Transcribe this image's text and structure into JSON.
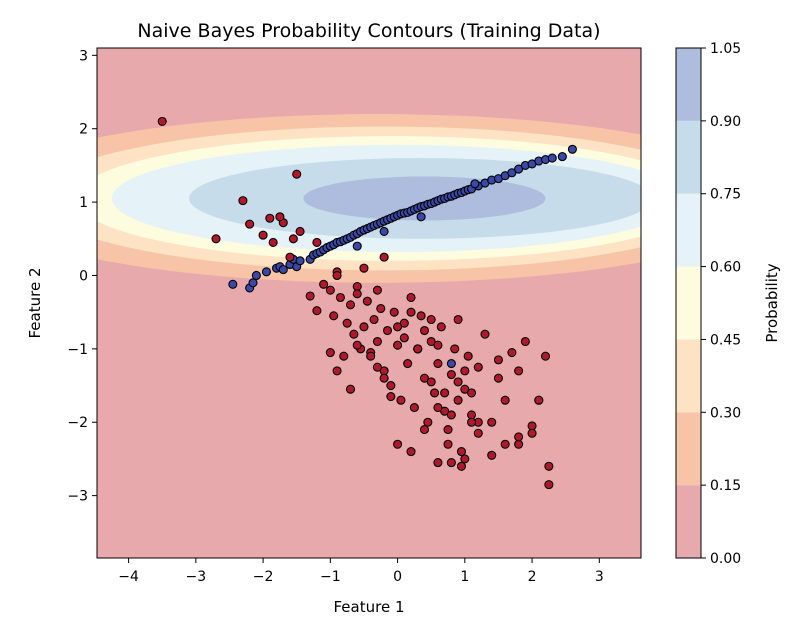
{
  "chart_data": {
    "type": "scatter",
    "title": "Naive Bayes Probability Contours (Training Data)",
    "xlabel": "Feature 1",
    "ylabel": "Feature 2",
    "xlim": [
      -4.47,
      3.62
    ],
    "ylim": [
      -3.85,
      3.1
    ],
    "xticks": [
      -4,
      -3,
      -2,
      -1,
      0,
      1,
      2,
      3
    ],
    "yticks": [
      -3,
      -2,
      -1,
      0,
      1,
      2,
      3
    ],
    "grid": false,
    "colorbar": {
      "label": "Probability",
      "ticks": [
        "0.00",
        "0.15",
        "0.30",
        "0.45",
        "0.60",
        "0.75",
        "0.90",
        "1.05"
      ],
      "levels": [
        0,
        0.15,
        0.3,
        0.45,
        0.6,
        0.75,
        0.9,
        1.05
      ],
      "colors": [
        "#e8a9ad",
        "#f7c4a8",
        "#fde2c4",
        "#fefcde",
        "#e5f2f7",
        "#c6dcea",
        "#aebcdd"
      ]
    },
    "contours": [
      {
        "level": 0.15,
        "cx": -0.3,
        "cy": 1.05,
        "rx": 6.0,
        "ry": 1.15
      },
      {
        "level": 0.3,
        "cx": -0.2,
        "cy": 1.05,
        "rx": 5.2,
        "ry": 0.98
      },
      {
        "level": 0.45,
        "cx": -0.1,
        "cy": 1.05,
        "rx": 4.7,
        "ry": 0.85
      },
      {
        "level": 0.6,
        "cx": 0.0,
        "cy": 1.05,
        "rx": 4.25,
        "ry": 0.73
      },
      {
        "level": 0.75,
        "cx": 0.35,
        "cy": 1.05,
        "rx": 3.45,
        "ry": 0.55
      },
      {
        "level": 0.9,
        "cx": 0.4,
        "cy": 1.05,
        "rx": 1.8,
        "ry": 0.3
      }
    ],
    "series": [
      {
        "class": 1,
        "color": "#3a48a8",
        "x": [
          -2.45,
          -2.2,
          -2.15,
          -2.1,
          -1.95,
          -1.8,
          -1.75,
          -1.7,
          -1.6,
          -1.55,
          -1.5,
          -1.45,
          -1.3,
          -1.25,
          -1.2,
          -1.15,
          -1.1,
          -1.05,
          -1.0,
          -0.95,
          -0.9,
          -0.85,
          -0.8,
          -0.75,
          -0.7,
          -0.65,
          -0.6,
          -0.55,
          -0.5,
          -0.45,
          -0.4,
          -0.35,
          -0.3,
          -0.25,
          -0.2,
          -0.15,
          -0.1,
          -0.05,
          0.0,
          0.05,
          0.1,
          0.15,
          0.2,
          0.25,
          0.3,
          0.35,
          0.4,
          0.45,
          0.5,
          0.55,
          0.6,
          0.65,
          0.7,
          0.75,
          0.8,
          0.85,
          0.9,
          0.95,
          1.0,
          1.05,
          1.1,
          1.2,
          1.3,
          1.4,
          1.5,
          1.6,
          1.7,
          1.8,
          1.9,
          2.0,
          2.1,
          2.2,
          2.3,
          2.45,
          2.6,
          0.8,
          -0.2,
          0.35,
          1.15,
          -0.6
        ],
        "y": [
          -0.12,
          -0.17,
          -0.1,
          0.0,
          0.05,
          0.1,
          0.12,
          0.08,
          0.15,
          0.22,
          0.12,
          0.2,
          0.22,
          0.28,
          0.3,
          0.32,
          0.35,
          0.38,
          0.4,
          0.42,
          0.45,
          0.46,
          0.48,
          0.5,
          0.52,
          0.55,
          0.57,
          0.6,
          0.62,
          0.64,
          0.66,
          0.68,
          0.7,
          0.72,
          0.74,
          0.76,
          0.78,
          0.8,
          0.82,
          0.84,
          0.85,
          0.86,
          0.88,
          0.9,
          0.92,
          0.94,
          0.95,
          0.97,
          0.98,
          1.0,
          1.02,
          1.04,
          1.05,
          1.07,
          1.08,
          1.1,
          1.12,
          1.13,
          1.15,
          1.17,
          1.18,
          1.22,
          1.26,
          1.3,
          1.32,
          1.36,
          1.4,
          1.45,
          1.5,
          1.52,
          1.56,
          1.58,
          1.6,
          1.62,
          1.72,
          -1.2,
          0.6,
          0.8,
          1.25,
          0.4
        ]
      },
      {
        "class": 0,
        "color": "#b2182b",
        "x": [
          -3.5,
          -2.7,
          -2.3,
          -2.2,
          -2.0,
          -1.9,
          -1.85,
          -1.7,
          -1.6,
          -1.55,
          -1.5,
          -1.3,
          -1.2,
          -1.1,
          -1.0,
          -0.95,
          -0.9,
          -0.85,
          -0.8,
          -0.75,
          -0.7,
          -0.65,
          -0.6,
          -0.55,
          -0.5,
          -0.45,
          -0.4,
          -0.35,
          -0.3,
          -0.25,
          -0.2,
          -0.15,
          -0.1,
          -0.05,
          0.0,
          0.05,
          0.1,
          0.15,
          0.2,
          0.25,
          0.3,
          0.35,
          0.4,
          0.45,
          0.5,
          0.55,
          0.6,
          0.65,
          0.7,
          0.75,
          0.8,
          0.85,
          0.9,
          0.95,
          1.0,
          1.05,
          1.1,
          1.2,
          1.3,
          1.4,
          1.5,
          1.6,
          1.7,
          1.8,
          1.9,
          2.0,
          2.1,
          2.2,
          -1.0,
          -0.9,
          -0.7,
          -0.6,
          -0.4,
          -0.3,
          -0.2,
          -0.1,
          0.0,
          0.1,
          0.2,
          0.3,
          0.4,
          0.5,
          0.6,
          0.7,
          0.8,
          0.9,
          1.0,
          1.1,
          0.2,
          0.4,
          0.6,
          0.8,
          1.0,
          1.2,
          1.4,
          1.6,
          1.8,
          2.0,
          2.1,
          2.25,
          2.25,
          1.8,
          1.5,
          1.2,
          0.9,
          0.6,
          0.3,
          0.0,
          -0.3,
          -0.6,
          -0.9,
          -1.2,
          -1.45,
          -1.75,
          0.95,
          1.1,
          0.75,
          -0.5,
          -0.2,
          0.5
        ],
        "y": [
          2.1,
          0.5,
          1.02,
          0.7,
          0.55,
          0.78,
          0.45,
          0.72,
          0.25,
          0.5,
          1.38,
          -0.28,
          -0.48,
          -0.12,
          -0.2,
          -0.55,
          0.05,
          -0.3,
          -1.1,
          -0.65,
          -0.4,
          -0.8,
          -0.15,
          -1.0,
          -0.7,
          -0.35,
          -1.05,
          -0.6,
          -0.9,
          -0.45,
          -1.3,
          -0.75,
          -1.5,
          -0.5,
          -0.95,
          -1.7,
          -0.65,
          -1.2,
          -0.3,
          -1.8,
          -1.0,
          -0.55,
          -1.4,
          -2.0,
          -0.9,
          -1.6,
          -1.2,
          -0.7,
          -1.85,
          -2.1,
          -1.35,
          -1.0,
          -1.7,
          -2.4,
          -1.55,
          -1.1,
          -1.9,
          -1.25,
          -0.8,
          -2.0,
          -1.4,
          -1.7,
          -1.05,
          -2.3,
          -0.9,
          -2.05,
          -1.7,
          -1.1,
          -1.05,
          -1.3,
          -1.55,
          -0.95,
          -1.1,
          -1.25,
          -1.4,
          -1.65,
          -2.3,
          -0.85,
          -0.5,
          -1.0,
          -0.75,
          -1.45,
          -0.95,
          -1.6,
          -1.9,
          -0.6,
          -1.3,
          -1.6,
          -2.4,
          -2.1,
          -2.55,
          -2.55,
          -2.5,
          -2.15,
          -2.45,
          -2.3,
          -2.2,
          -2.15,
          -1.7,
          -2.6,
          -2.85,
          -1.3,
          -1.15,
          -2.0,
          -1.45,
          -1.8,
          -1.0,
          -0.7,
          -0.2,
          -0.25,
          0.0,
          0.45,
          0.6,
          0.8,
          -2.6,
          -2.0,
          -2.3,
          0.1,
          0.25,
          -0.6
        ]
      }
    ]
  }
}
